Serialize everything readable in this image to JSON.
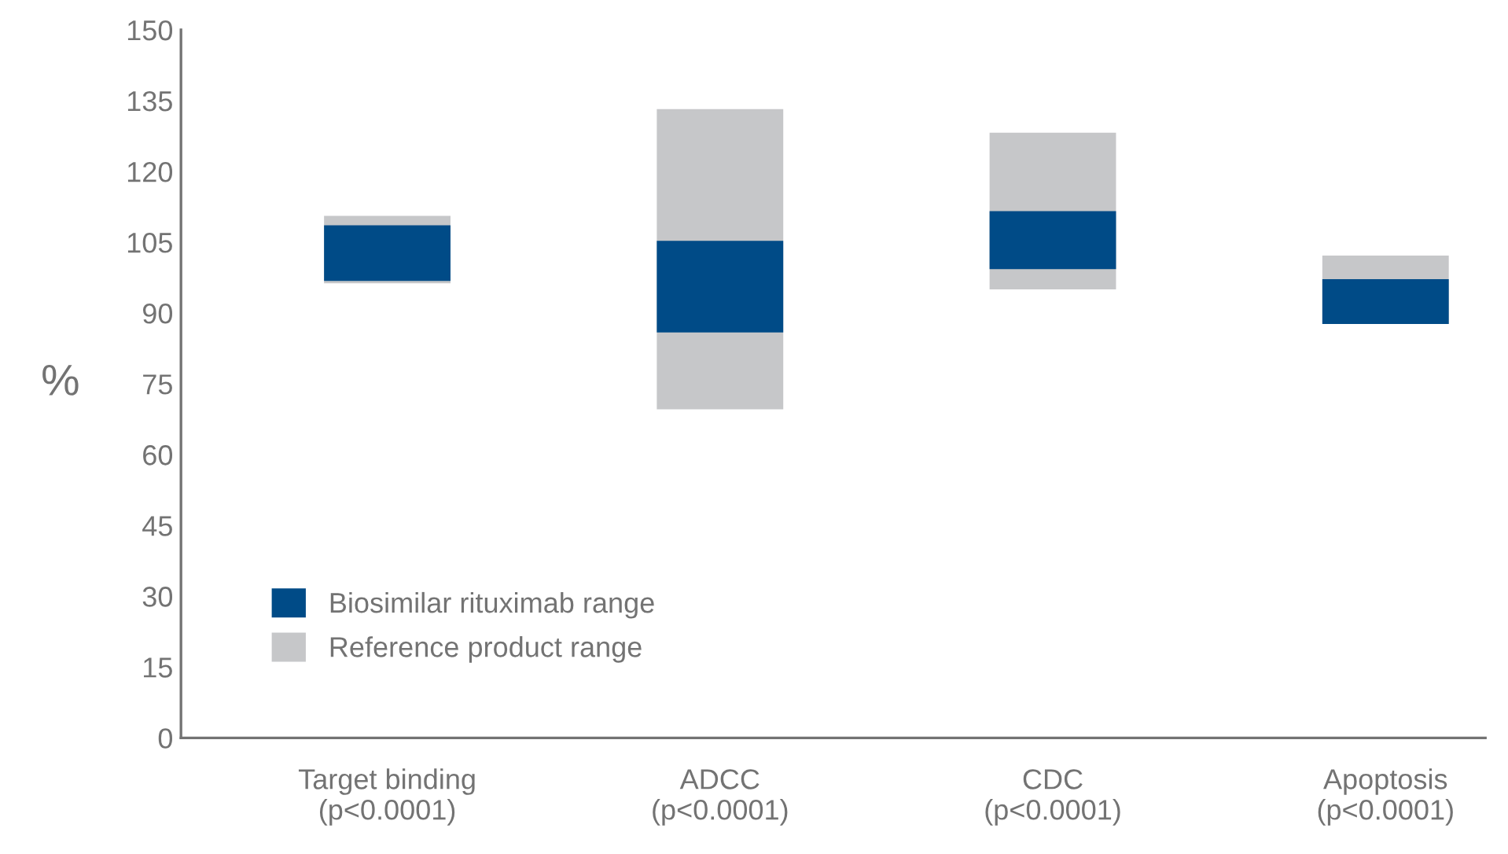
{
  "chart_data": {
    "type": "bar",
    "ylabel": "%",
    "categories": [
      "Target binding\n(p<0.0001)",
      "ADCC\n(p<0.0001)",
      "CDC\n(p<0.0001)",
      "Apoptosis\n(p<0.0001)"
    ],
    "series": [
      {
        "name": "Reference product range",
        "color": "#c6c7c9",
        "base": [
          96.3,
          69.6,
          95.0,
          87.7
        ],
        "values": [
          14.3,
          63.6,
          33.2,
          14.5
        ]
      },
      {
        "name": "Biosimilar rituximab range",
        "color": "#004b87",
        "base": [
          96.8,
          85.9,
          99.3,
          87.7
        ],
        "values": [
          11.8,
          19.4,
          12.3,
          9.5
        ]
      }
    ],
    "ylim": [
      0,
      150
    ],
    "yticks": [
      0,
      15,
      30,
      45,
      60,
      75,
      90,
      105,
      120,
      135,
      150
    ],
    "grid": false,
    "legend": "bottom left"
  }
}
